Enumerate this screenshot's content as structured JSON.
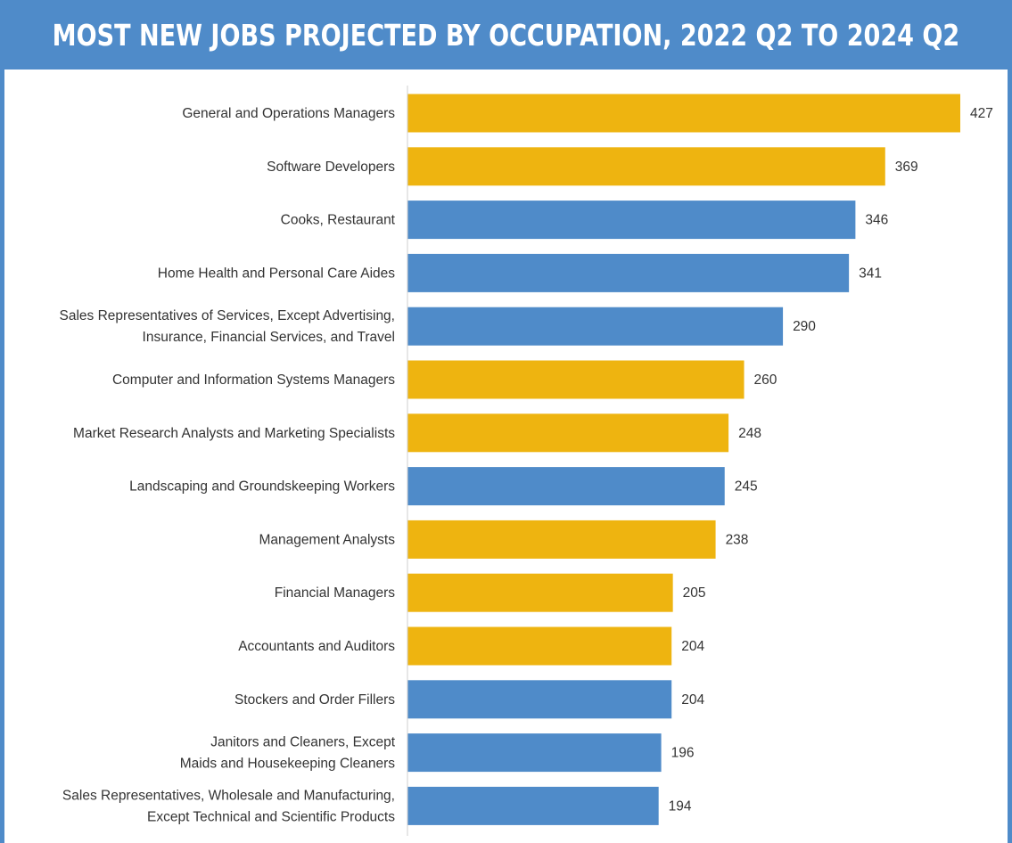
{
  "header": {
    "title": "MOST NEW JOBS PROJECTED BY OCCUPATION, 2022 Q2 TO 2024 Q2"
  },
  "colors": {
    "frame": "#4F8BC9",
    "gold": "#EEB410",
    "blue": "#4F8BC9"
  },
  "chart_data": {
    "type": "bar",
    "orientation": "horizontal",
    "title": "MOST NEW JOBS PROJECTED BY OCCUPATION, 2022 Q2 TO 2024 Q2",
    "xlabel": "",
    "ylabel": "",
    "grid": false,
    "legend": "none",
    "categories": [
      [
        "General and Operations Managers"
      ],
      [
        "Software Developers"
      ],
      [
        "Cooks, Restaurant"
      ],
      [
        "Home Health and Personal Care Aides"
      ],
      [
        "Sales Representatives of Services, Except Advertising,",
        "Insurance, Financial Services, and Travel"
      ],
      [
        "Computer and Information Systems Managers"
      ],
      [
        "Market Research Analysts and Marketing Specialists"
      ],
      [
        "Landscaping and Groundskeeping Workers"
      ],
      [
        "Management Analysts"
      ],
      [
        "Financial Managers"
      ],
      [
        "Accountants and Auditors"
      ],
      [
        "Stockers and Order Fillers"
      ],
      [
        "Janitors and Cleaners, Except",
        "Maids and Housekeeping Cleaners"
      ],
      [
        "Sales Representatives, Wholesale and Manufacturing,",
        "Except Technical and Scientific Products"
      ]
    ],
    "values": [
      427,
      369,
      346,
      341,
      290,
      260,
      248,
      245,
      238,
      205,
      204,
      204,
      196,
      194
    ],
    "bar_colors": [
      "#EEB410",
      "#EEB410",
      "#4F8BC9",
      "#4F8BC9",
      "#4F8BC9",
      "#EEB410",
      "#EEB410",
      "#4F8BC9",
      "#EEB410",
      "#EEB410",
      "#EEB410",
      "#4F8BC9",
      "#4F8BC9",
      "#4F8BC9"
    ]
  }
}
